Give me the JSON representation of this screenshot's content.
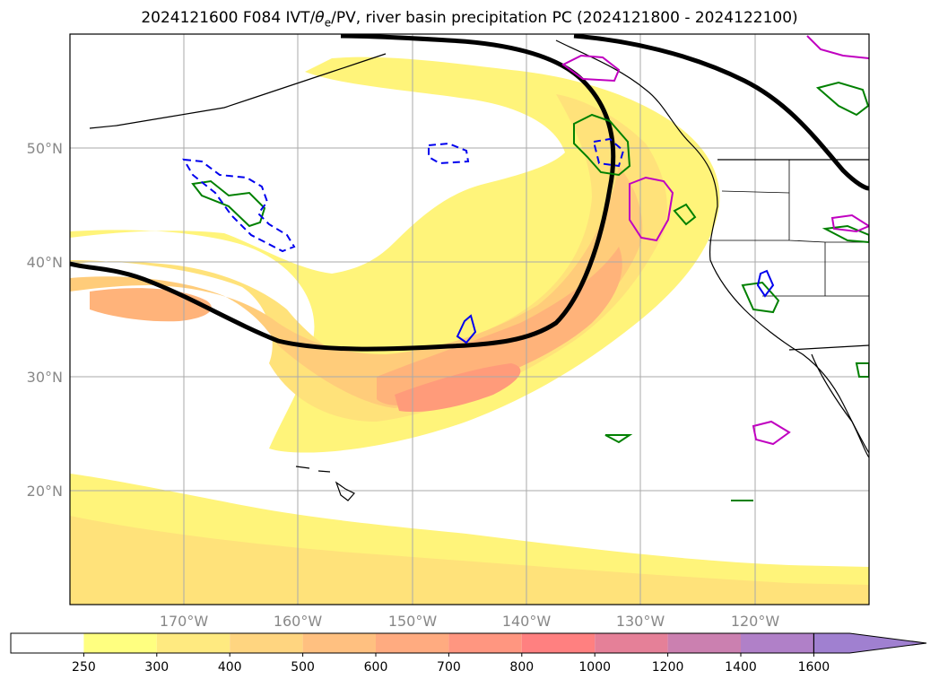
{
  "title": {
    "prefix": "2024121600 F084 IVT/",
    "theta": "θ",
    "theta_sub": "e",
    "suffix": "/PV, river basin precipitation PC (2024121800 - 2024122100)"
  },
  "map": {
    "lat_labels": [
      "50°N",
      "40°N",
      "30°N",
      "20°N"
    ],
    "lon_labels": [
      "170°W",
      "160°W",
      "150°W",
      "140°W",
      "130°W",
      "120°W"
    ],
    "gridline_color": "#aaaaaa",
    "label_color": "#888888"
  },
  "ivt_fill_colors": [
    "#fff47a",
    "#ffe27a",
    "#ffcc7a",
    "#ffb37a",
    "#ff9b7a",
    "#ff857a"
  ],
  "contours": {
    "pv_color": "#000000",
    "green": "#008000",
    "magenta": "#c000c0",
    "blue": "#0000ee"
  },
  "colorbar": {
    "ticks": [
      "250",
      "300",
      "400",
      "500",
      "600",
      "700",
      "800",
      "1000",
      "1200",
      "1400",
      "1600"
    ],
    "colors": [
      "#ffffff",
      "#ffff80",
      "#ffea80",
      "#ffd580",
      "#ffc080",
      "#ffab80",
      "#ff9680",
      "#ff8080",
      "#e58098",
      "#cb80b0",
      "#b080c8",
      "#a080d0"
    ]
  }
}
